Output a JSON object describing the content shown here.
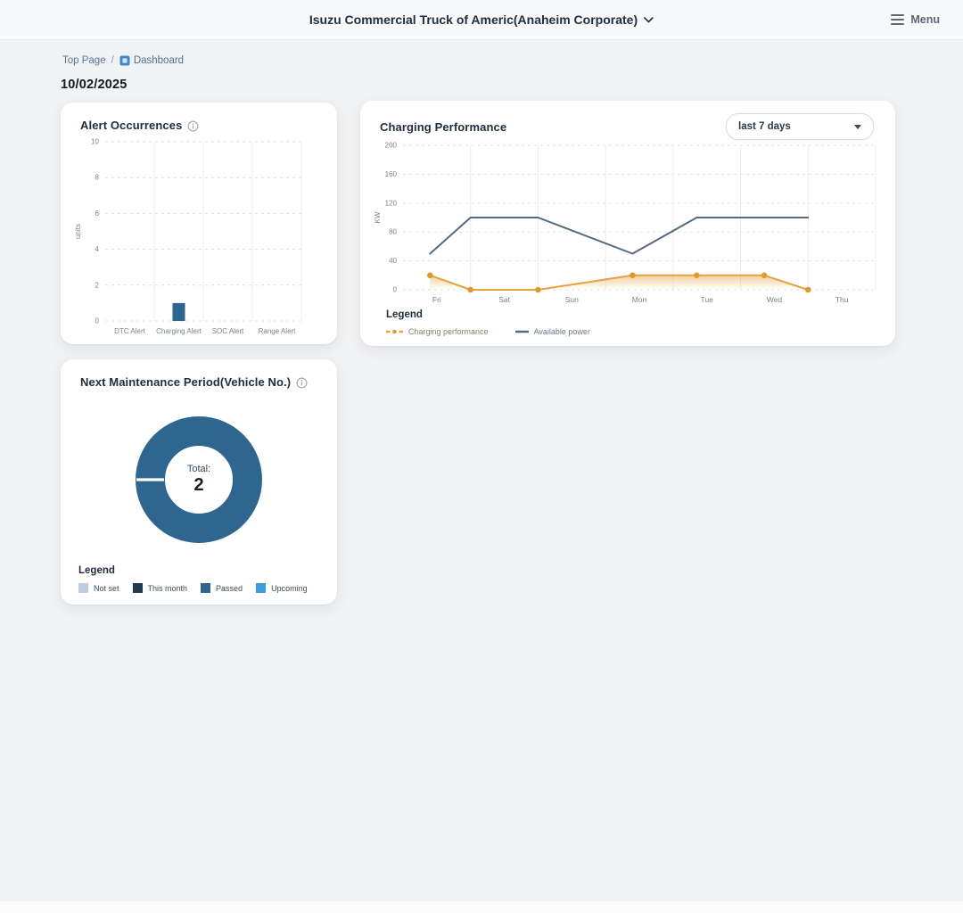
{
  "header": {
    "title": "Isuzu Commercial Truck of Americ(Anaheim Corporate)",
    "menu_label": "Menu"
  },
  "breadcrumb": {
    "top_page": "Top Page",
    "separator": "/",
    "dashboard": "Dashboard"
  },
  "date": "10/02/2025",
  "ui": {
    "legend_label": "Legend"
  },
  "cards": {
    "charging": {
      "range_selector": "last 7 days"
    }
  },
  "colors": {
    "steel_blue": "#2f6690",
    "navy": "#253952",
    "light_blue": "#b9cde3",
    "bright_blue": "#3e9bd9",
    "orange": "#e6a23c",
    "slate": "#56697e",
    "page_bg": "#f1f2f3",
    "card_bg": "#ffffff"
  },
  "chart_data": [
    {
      "id": "alert-occurrences",
      "type": "bar",
      "title": "Alert Occurrences",
      "categories": [
        "DTC Alert",
        "Charging Alert",
        "SOC Alert",
        "Range Alert"
      ],
      "values": [
        0,
        1,
        0,
        0
      ],
      "xlabel": "",
      "ylabel": "units",
      "ylim": [
        0,
        10
      ],
      "yticks": [
        0,
        2,
        4,
        6,
        8,
        10
      ],
      "bar_color": "#2f6690",
      "grid": true
    },
    {
      "id": "charging-performance",
      "type": "line",
      "title": "Charging Performance",
      "x_day_labels": [
        "Fri",
        "Sat",
        "Sun",
        "Mon",
        "Tue",
        "Wed",
        "Thu"
      ],
      "x": [
        0.4,
        1,
        2,
        3.4,
        4.35,
        5.35,
        6
      ],
      "series": [
        {
          "name": "Charging performance",
          "values": [
            20,
            0,
            0,
            20,
            20,
            20,
            0
          ],
          "color": "#e6a23c",
          "marker_color": "#de9a2f",
          "label_color": "#8d8068",
          "markers": true,
          "area_gradient": true
        },
        {
          "name": "Available power",
          "values": [
            50,
            100,
            100,
            50,
            100,
            100,
            100
          ],
          "color": "#56697e",
          "label_color": "#6f7c8b",
          "markers": false,
          "area_gradient": false
        }
      ],
      "xlabel": "",
      "ylabel": "KW",
      "ylim": [
        0,
        200
      ],
      "yticks": [
        0,
        40,
        80,
        120,
        160,
        200
      ],
      "legend_position": "bottom",
      "grid": true
    },
    {
      "id": "next-maintenance",
      "type": "pie",
      "title": "Next Maintenance Period(Vehicle No.)",
      "total_label": "Total:",
      "total": 2,
      "slices": [
        {
          "label": "Passed",
          "value": 2,
          "color": "#2f6690"
        }
      ],
      "legend": [
        {
          "label": "Not set",
          "color": "#b9cde3"
        },
        {
          "label": "This month",
          "color": "#253952"
        },
        {
          "label": "Passed",
          "color": "#2f6690"
        },
        {
          "label": "Upcoming",
          "color": "#3e9bd9"
        }
      ]
    }
  ]
}
